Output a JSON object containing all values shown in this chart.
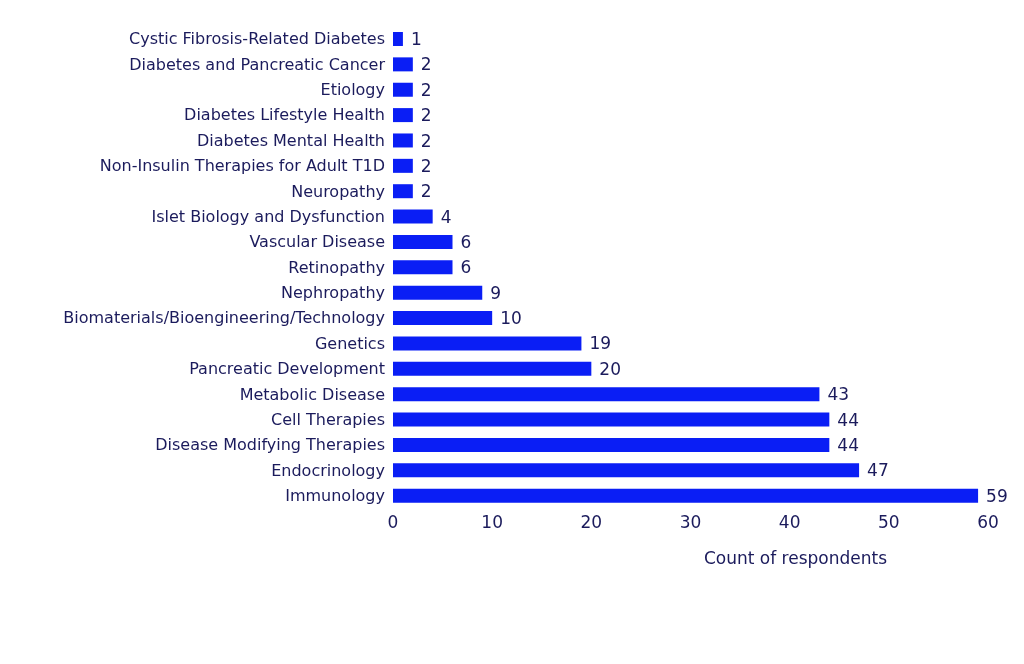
{
  "chart_data": {
    "type": "bar",
    "orientation": "horizontal",
    "xlabel": "Count of respondents",
    "categories": [
      "Cystic Fibrosis-Related Diabetes",
      "Diabetes and Pancreatic Cancer",
      "Etiology",
      "Diabetes Lifestyle Health",
      "Diabetes Mental Health",
      "Non-Insulin Therapies for Adult T1D",
      "Neuropathy",
      "Islet Biology and Dysfunction",
      "Vascular Disease",
      "Retinopathy",
      "Nephropathy",
      "Biomaterials/Bioengineering/Technology",
      "Genetics",
      "Pancreatic Development",
      "Metabolic Disease",
      "Cell Therapies",
      "Disease Modifying Therapies",
      "Endocrinology",
      "Immunology"
    ],
    "values": [
      1,
      2,
      2,
      2,
      2,
      2,
      2,
      4,
      6,
      6,
      9,
      10,
      19,
      20,
      43,
      44,
      44,
      47,
      59
    ],
    "color": "#0a1ef5",
    "xlim": [
      0,
      60
    ],
    "xticks": [
      0,
      10,
      20,
      30,
      40,
      50,
      60
    ],
    "data_labels": true,
    "grid": false,
    "legend": false
  }
}
